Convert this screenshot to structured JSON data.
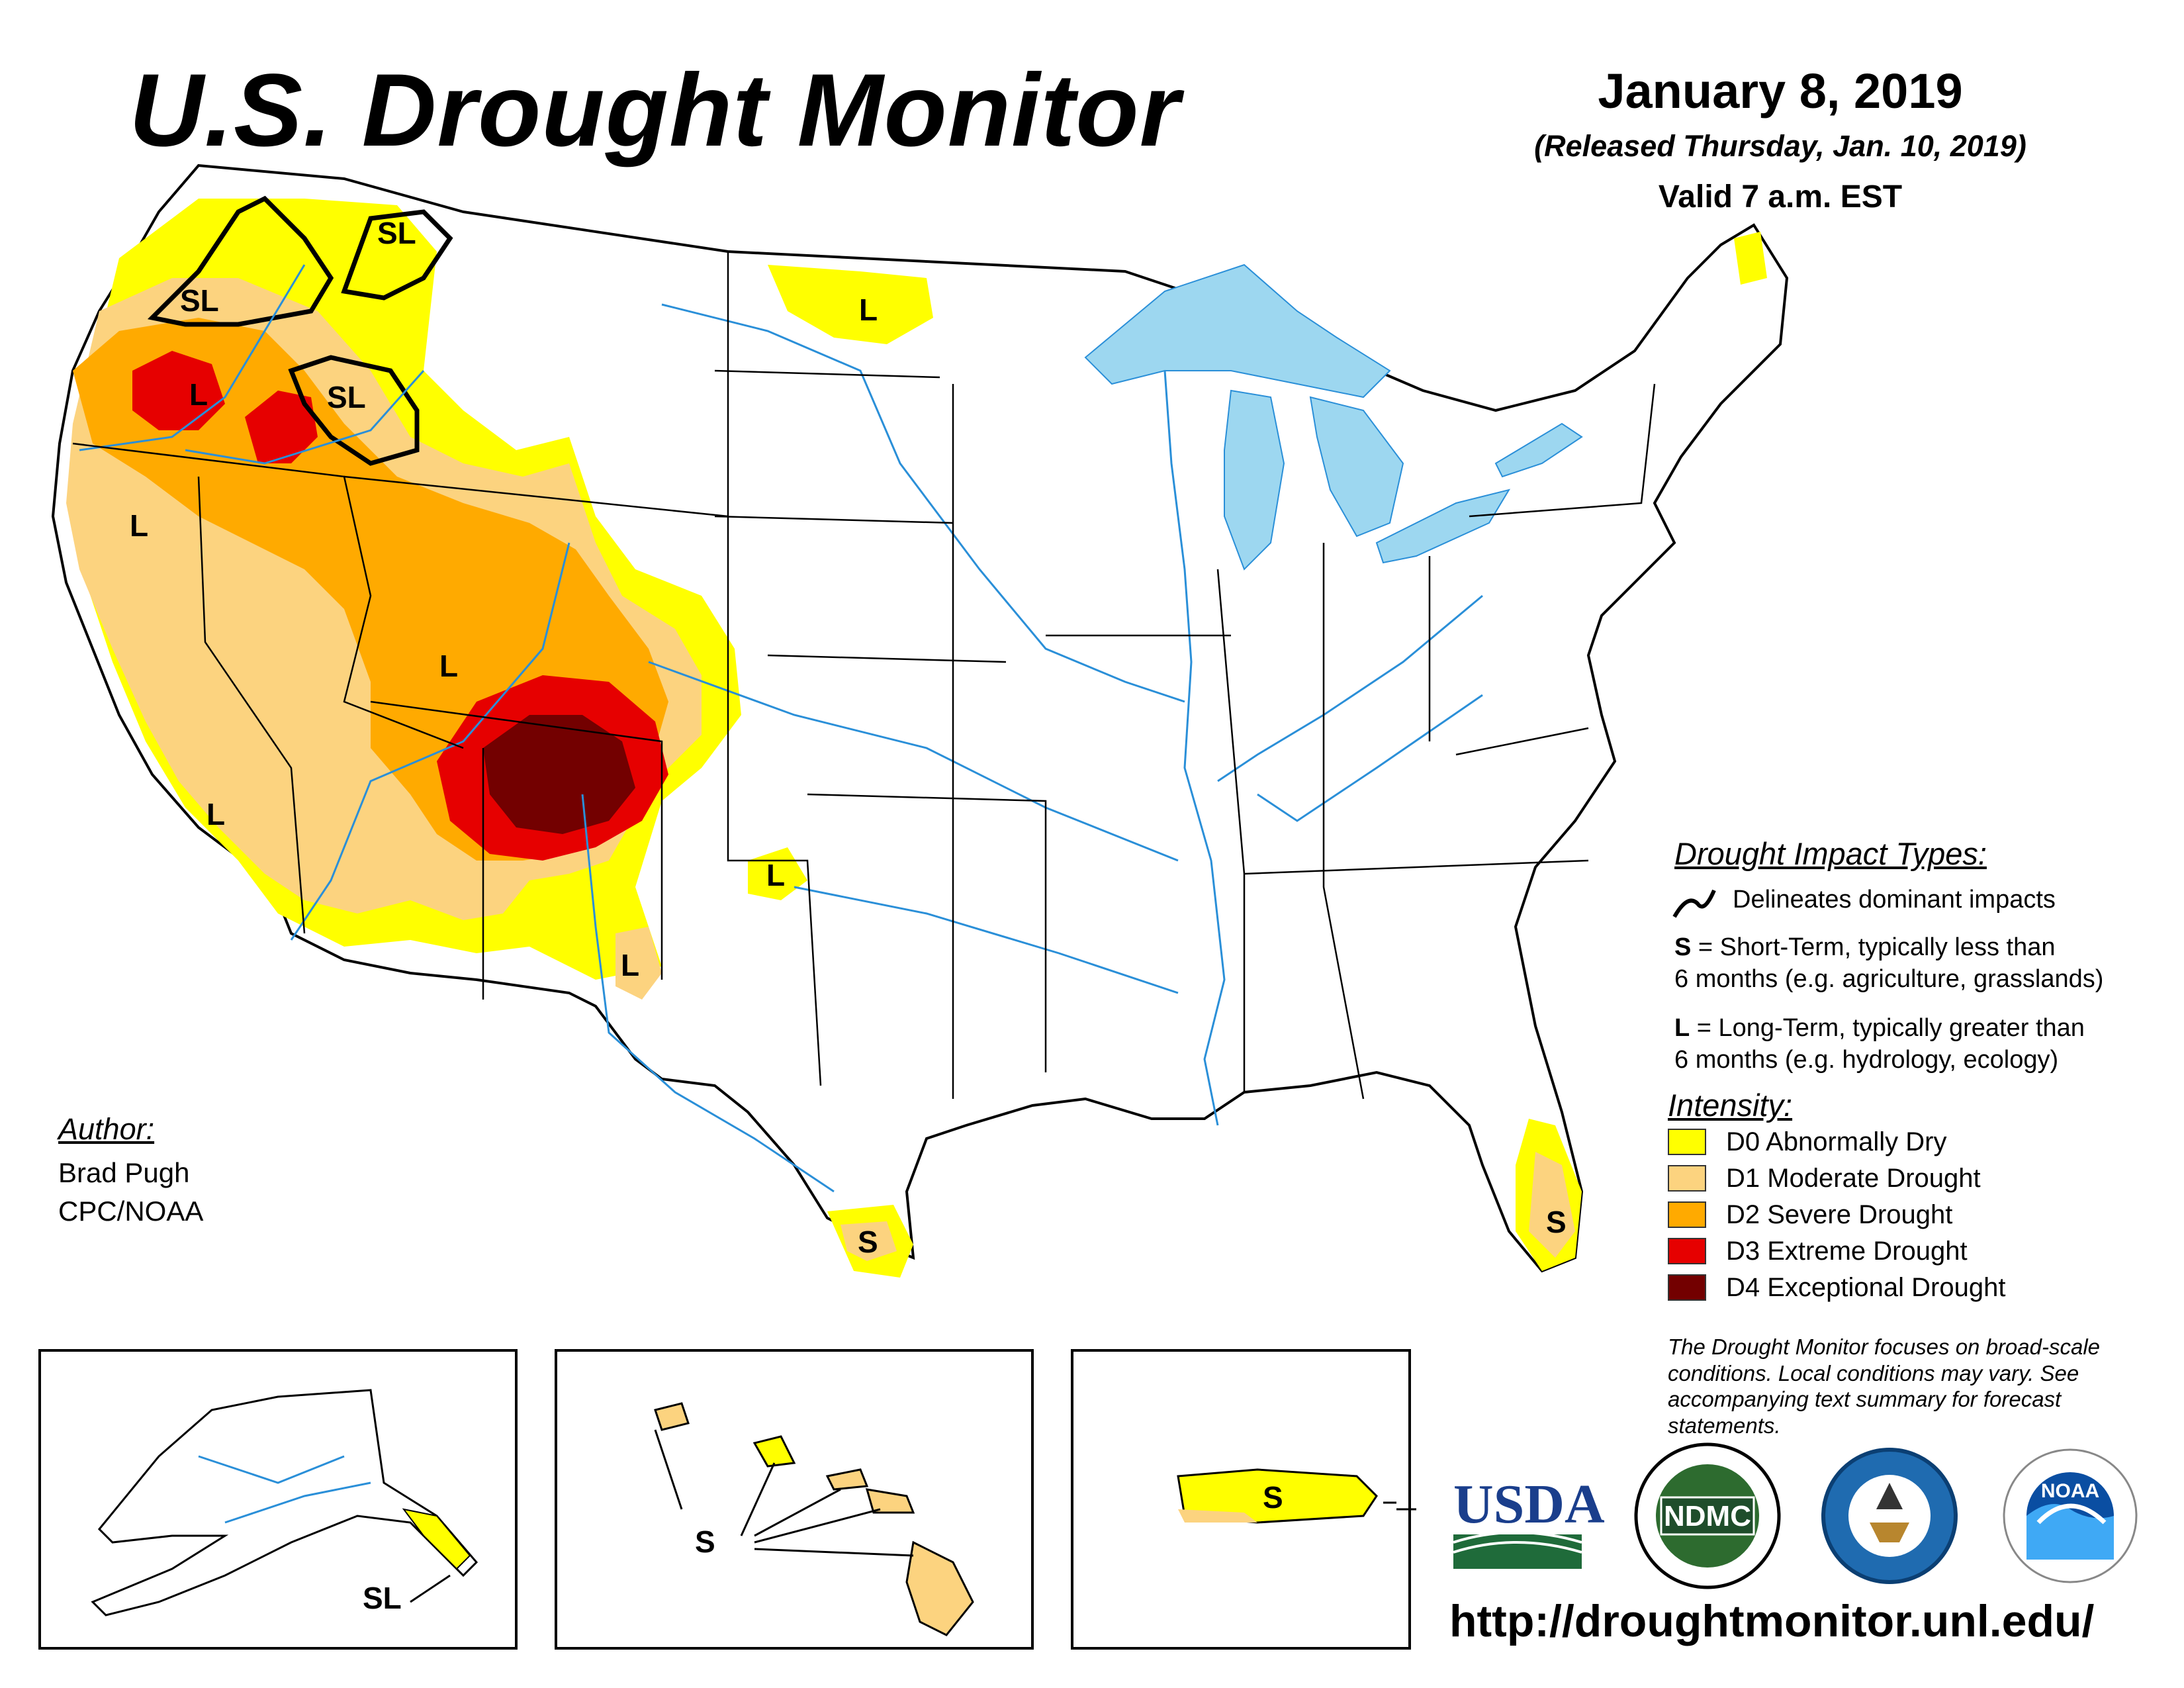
{
  "header": {
    "title": "U.S. Drought Monitor",
    "date": "January 8, 2019",
    "released": "(Released Thursday, Jan. 10, 2019)",
    "valid": "Valid 7 a.m. EST"
  },
  "author": {
    "heading": "Author:",
    "name": "Brad Pugh",
    "org": "CPC/NOAA"
  },
  "impact_types": {
    "heading": "Drought Impact Types:",
    "delineates": "Delineates dominant impacts",
    "short_key": "S",
    "short_line1": " = Short-Term, typically less than",
    "short_line2": "6 months (e.g. agriculture, grasslands)",
    "long_key": "L",
    "long_line1": " = Long-Term, typically greater than",
    "long_line2": "6 months (e.g. hydrology, ecology)"
  },
  "intensity": {
    "heading": "Intensity:",
    "levels": [
      {
        "label": "D0 Abnormally Dry",
        "color": "#ffff00"
      },
      {
        "label": "D1 Moderate Drought",
        "color": "#fcd37f"
      },
      {
        "label": "D2 Severe Drought",
        "color": "#ffaa00"
      },
      {
        "label": "D3 Extreme Drought",
        "color": "#e60000"
      },
      {
        "label": "D4 Exceptional Drought",
        "color": "#730000"
      }
    ]
  },
  "note": "The Drought Monitor focuses on broad-scale conditions. Local conditions may vary. See accompanying text summary for forecast statements.",
  "url": "http://droughtmonitor.unl.edu/",
  "logos": {
    "usda": "USDA",
    "ndmc": "NDMC",
    "noaa": "NOAA"
  },
  "map_labels": {
    "sl": "SL",
    "s": "S",
    "l": "L"
  },
  "colors": {
    "water": "#9dd7f0",
    "river": "#2a8fd8",
    "usda_blue": "#1a3e8c",
    "usda_green": "#1f6b3a"
  }
}
